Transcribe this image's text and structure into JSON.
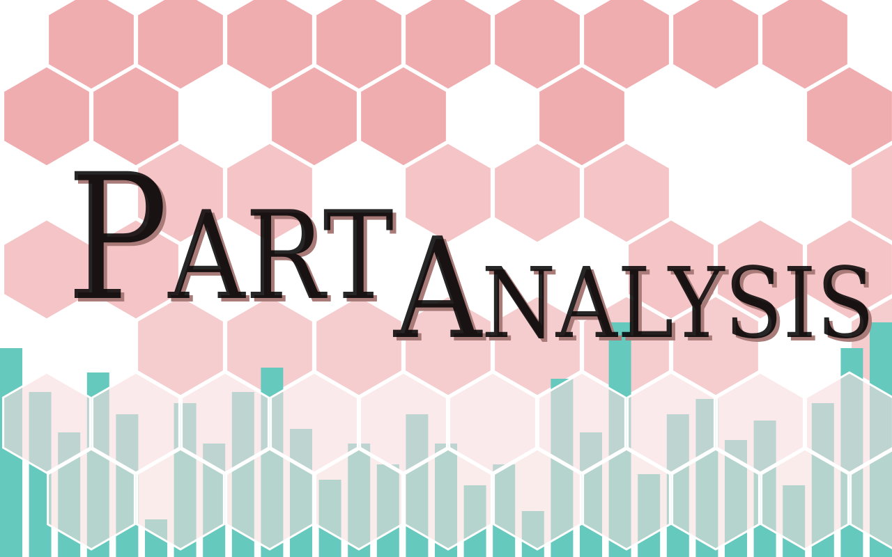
{
  "logo": {
    "first_word": "Part",
    "second_word": "Analysis"
  }
}
